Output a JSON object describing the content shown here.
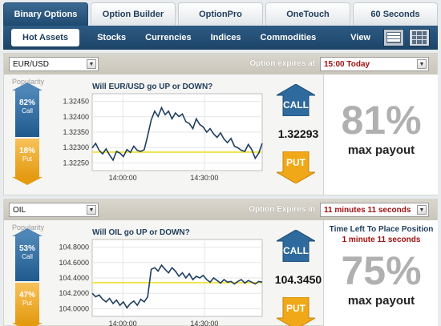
{
  "top_tabs": [
    {
      "label": "Binary Options",
      "active": true
    },
    {
      "label": "Option Builder",
      "active": false
    },
    {
      "label": "OptionPro",
      "active": false
    },
    {
      "label": "OneTouch",
      "active": false
    },
    {
      "label": "60 Seconds",
      "active": false
    }
  ],
  "asset_tabs": [
    {
      "label": "Hot Assets",
      "active": true
    },
    {
      "label": "Stocks"
    },
    {
      "label": "Currencies"
    },
    {
      "label": "Indices"
    },
    {
      "label": "Commodities"
    }
  ],
  "view_label": "View",
  "panels": [
    {
      "asset": "EUR/USD",
      "expire_label": "Option expires at",
      "expire_value": "15:00 Today",
      "popularity_label": "Popularity",
      "call_pct": "82%",
      "call_word": "Call",
      "put_pct": "18%",
      "put_word": "Put",
      "question": "Will EUR/USD go UP or DOWN?",
      "price": "1.32293",
      "payout_pct": "81%",
      "payout_text": "max payout",
      "call_label": "CALL",
      "put_label": "PUT"
    },
    {
      "asset": "OIL",
      "expire_label": "Option Expires in",
      "expire_value": "11 minutes 11 seconds",
      "popularity_label": "Popularity",
      "call_pct": "53%",
      "call_word": "Call",
      "put_pct": "47%",
      "put_word": "Put",
      "question": "Will OIL go UP or DOWN?",
      "price": "104.3450",
      "payout_pct": "75%",
      "payout_text": "max payout",
      "time_left_label": "Time Left To Place Position",
      "time_left_value": "1 minute 11 seconds",
      "call_label": "CALL",
      "put_label": "PUT"
    }
  ],
  "chart_data": [
    {
      "type": "line",
      "title": "Will EUR/USD go UP or DOWN?",
      "yticks": [
        "1.32450",
        "1.32400",
        "1.32350",
        "1.32300",
        "1.32250"
      ],
      "xticks": [
        "14:00:00",
        "14:30:00"
      ],
      "ylim": [
        1.3224,
        1.3246
      ],
      "strike": 1.32293,
      "series": [
        {
          "values": [
            1.32305,
            1.32318,
            1.32298,
            1.32288,
            1.32302,
            1.32285,
            1.3227,
            1.32295,
            1.3229,
            1.3228,
            1.323,
            1.32292,
            1.3231,
            1.32298,
            1.32295,
            1.323,
            1.3234,
            1.32385,
            1.3241,
            1.32395,
            1.3242,
            1.324,
            1.3241,
            1.32388,
            1.32405,
            1.32395,
            1.32402,
            1.3238,
            1.32375,
            1.3236,
            1.32388,
            1.32372,
            1.32365,
            1.3235,
            1.3236,
            1.32345,
            1.32335,
            1.32348,
            1.3233,
            1.3232,
            1.32332,
            1.3231,
            1.32305,
            1.32298,
            1.32295,
            1.32315,
            1.323,
            1.32275,
            1.3229,
            1.32318
          ]
        }
      ]
    },
    {
      "type": "line",
      "title": "Will OIL go UP or DOWN?",
      "yticks": [
        "104.8000",
        "104.6000",
        "104.4000",
        "104.2000",
        "104.0000"
      ],
      "xticks": [
        "14:00:00",
        "14:30:00"
      ],
      "ylim": [
        103.95,
        104.85
      ],
      "strike": 104.345,
      "series": [
        {
          "values": [
            104.22,
            104.18,
            104.2,
            104.15,
            104.12,
            104.16,
            104.1,
            104.14,
            104.08,
            104.12,
            104.05,
            104.1,
            104.13,
            104.08,
            104.15,
            104.12,
            104.18,
            104.5,
            104.52,
            104.48,
            104.55,
            104.5,
            104.46,
            104.52,
            104.48,
            104.42,
            104.46,
            104.4,
            104.45,
            104.38,
            104.42,
            104.4,
            104.43,
            104.38,
            104.35,
            104.4,
            104.37,
            104.34,
            104.38,
            104.35,
            104.36,
            104.33,
            104.36,
            104.38,
            104.34,
            104.37,
            104.35,
            104.33,
            104.36,
            104.35
          ]
        }
      ]
    }
  ]
}
